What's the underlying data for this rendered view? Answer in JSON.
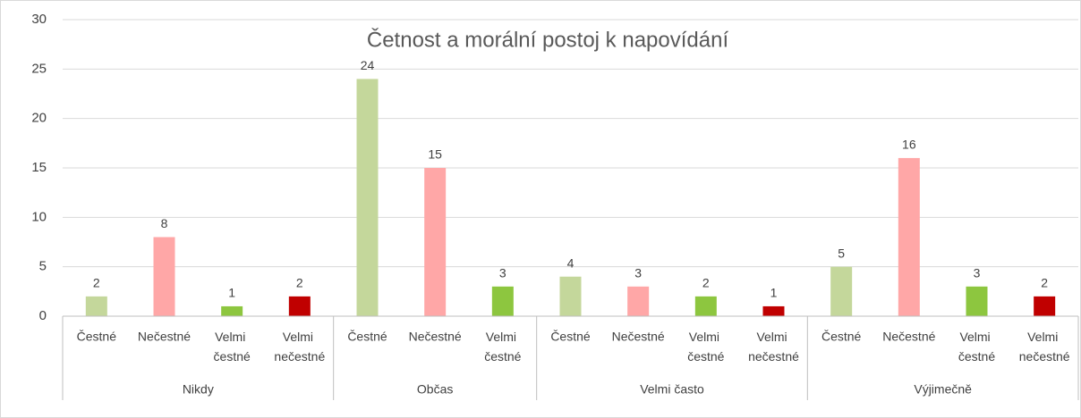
{
  "chart_data": {
    "type": "bar",
    "title": "Četnost a morální postoj k napovídání",
    "groups": [
      {
        "name": "Nikdy",
        "categories": [
          "Čestné",
          "Nečestné",
          "Velmi čestné",
          "Velmi nečestné"
        ],
        "values": [
          2,
          8,
          1,
          2
        ],
        "colors": [
          "#c4d79b",
          "#ffa7a7",
          "#8dc63f",
          "#c00000"
        ]
      },
      {
        "name": "Občas",
        "categories": [
          "Čestné",
          "Nečestné",
          "Velmi čestné"
        ],
        "values": [
          24,
          15,
          3
        ],
        "colors": [
          "#c4d79b",
          "#ffa7a7",
          "#8dc63f"
        ]
      },
      {
        "name": "Velmi často",
        "categories": [
          "Čestné",
          "Nečestné",
          "Velmi čestné",
          "Velmi nečestné"
        ],
        "values": [
          4,
          3,
          2,
          1
        ],
        "colors": [
          "#c4d79b",
          "#ffa7a7",
          "#8dc63f",
          "#c00000"
        ]
      },
      {
        "name": "Výjimečně",
        "categories": [
          "Čestné",
          "Nečestné",
          "Velmi čestné",
          "Velmi nečestné"
        ],
        "values": [
          5,
          16,
          3,
          2
        ],
        "colors": [
          "#c4d79b",
          "#ffa7a7",
          "#8dc63f",
          "#c00000"
        ]
      }
    ],
    "ylim": [
      0,
      30
    ],
    "yticks": [
      0,
      5,
      10,
      15,
      20,
      25,
      30
    ],
    "grid": true
  }
}
